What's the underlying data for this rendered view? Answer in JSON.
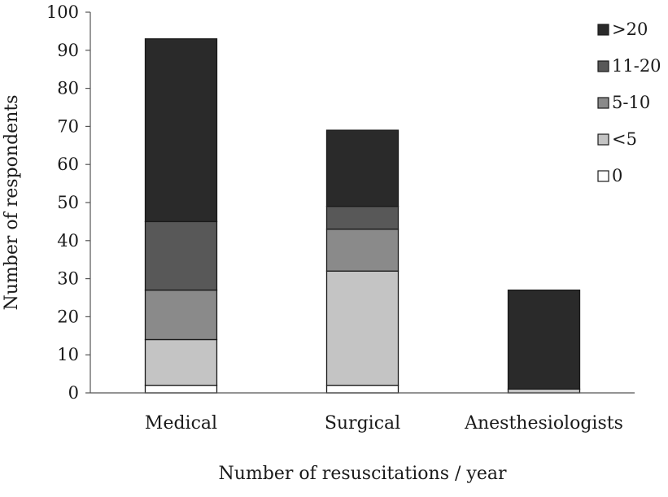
{
  "chart_data": {
    "type": "bar",
    "stacked": true,
    "title": "",
    "xlabel": "Number of resuscitations / year",
    "ylabel": "Number of respondents",
    "ylim": [
      0,
      100
    ],
    "yticks": [
      "0",
      "10",
      "20",
      "30",
      "40",
      "50",
      "60",
      "70",
      "80",
      "90",
      "100"
    ],
    "categories": [
      "Medical",
      "Surgical",
      "Anesthesiologists"
    ],
    "series": [
      {
        "name": "0",
        "color": "#ffffff",
        "values": [
          2,
          2,
          0
        ]
      },
      {
        "name": "<5",
        "color": "#c4c4c4",
        "values": [
          12,
          30,
          1
        ]
      },
      {
        "name": "5-10",
        "color": "#8a8a8a",
        "values": [
          13,
          11,
          0
        ]
      },
      {
        "name": "11-20",
        "color": "#585858",
        "values": [
          18,
          6,
          0
        ]
      },
      {
        "name": ">20",
        "color": "#2a2a2a",
        "values": [
          48,
          20,
          26
        ]
      }
    ],
    "legend_position": "top-right"
  }
}
